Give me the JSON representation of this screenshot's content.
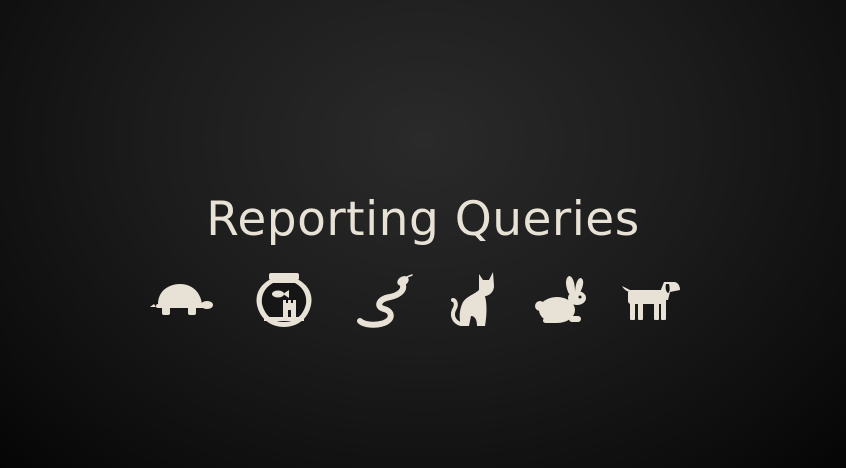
{
  "slide": {
    "title": "Reporting Queries"
  },
  "icons": [
    {
      "name": "turtle-icon"
    },
    {
      "name": "fishbowl-icon"
    },
    {
      "name": "snake-icon"
    },
    {
      "name": "cat-icon"
    },
    {
      "name": "rabbit-icon"
    },
    {
      "name": "dog-icon"
    }
  ],
  "colors": {
    "foreground": "#e8e2d6",
    "background": "#161616"
  }
}
